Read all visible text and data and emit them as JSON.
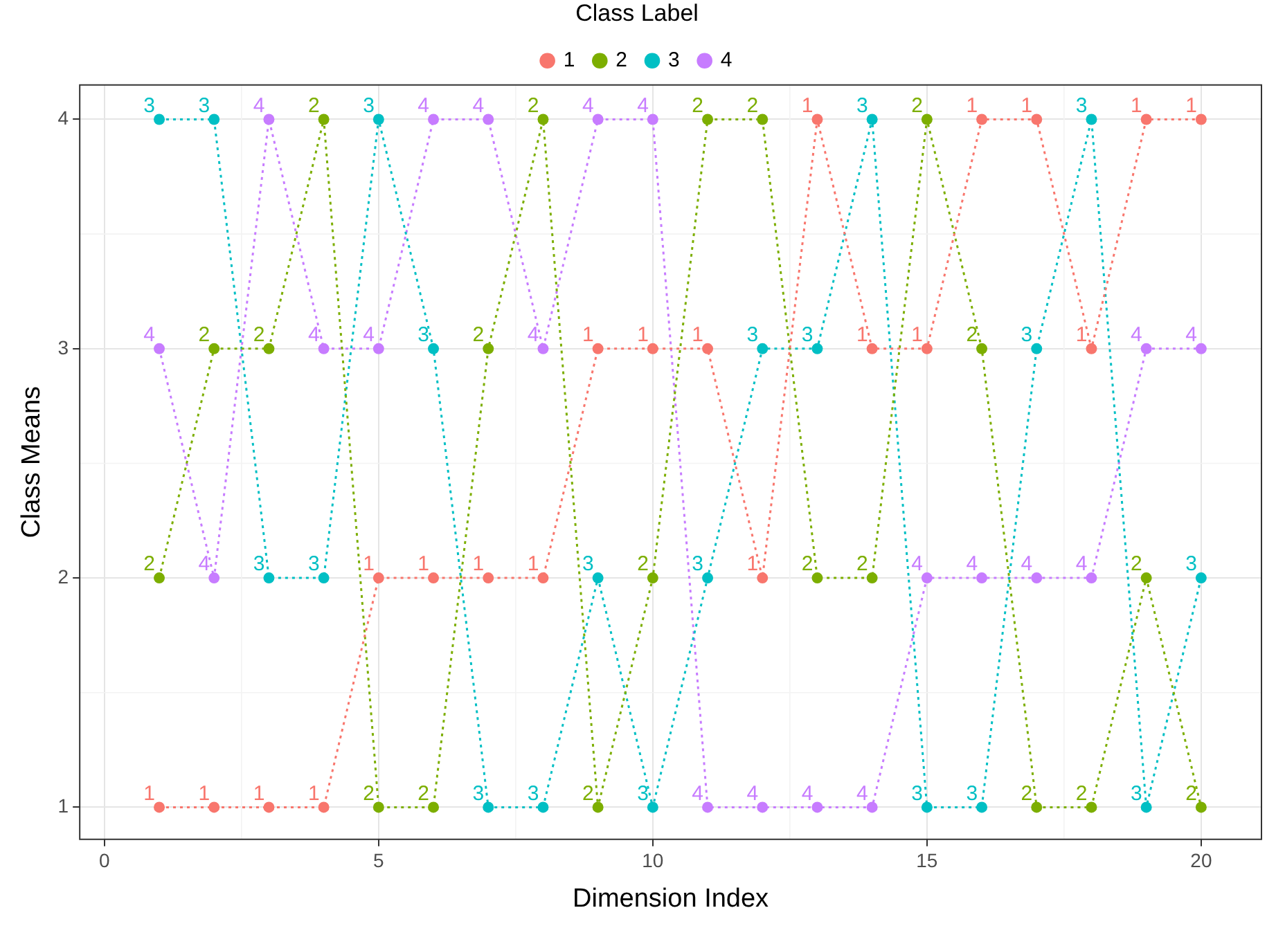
{
  "chart_data": {
    "type": "line",
    "xlabel": "Dimension Index",
    "ylabel": "Class Means",
    "legend_title": "Class Label",
    "legend": "top",
    "x": [
      1,
      2,
      3,
      4,
      5,
      6,
      7,
      8,
      9,
      10,
      11,
      12,
      13,
      14,
      15,
      16,
      17,
      18,
      19,
      20
    ],
    "series": [
      {
        "name": "1",
        "color": "#f8766d",
        "values": [
          1,
          1,
          1,
          1,
          2,
          2,
          2,
          2,
          3,
          3,
          3,
          2,
          4,
          3,
          3,
          4,
          4,
          3,
          4,
          4
        ]
      },
      {
        "name": "2",
        "color": "#7cae00",
        "values": [
          2,
          3,
          3,
          4,
          1,
          1,
          3,
          4,
          1,
          2,
          4,
          4,
          2,
          2,
          4,
          3,
          1,
          1,
          2,
          1
        ]
      },
      {
        "name": "3",
        "color": "#00bfc4",
        "values": [
          4,
          4,
          2,
          2,
          4,
          3,
          1,
          1,
          2,
          1,
          2,
          3,
          3,
          4,
          1,
          1,
          3,
          4,
          1,
          2
        ]
      },
      {
        "name": "4",
        "color": "#c77cff",
        "values": [
          3,
          2,
          4,
          3,
          3,
          4,
          4,
          3,
          4,
          4,
          1,
          1,
          1,
          1,
          2,
          2,
          2,
          2,
          3,
          3
        ]
      }
    ],
    "annotations": [
      {
        "text": "1",
        "x": 1,
        "y": 1
      },
      {
        "text": "1",
        "x": 2,
        "y": 1
      },
      {
        "text": "1",
        "x": 3,
        "y": 1
      },
      {
        "text": "1",
        "x": 4,
        "y": 1
      },
      {
        "text": "1",
        "x": 5,
        "y": 2
      },
      {
        "text": "1",
        "x": 6,
        "y": 2
      },
      {
        "text": "1",
        "x": 7,
        "y": 2
      },
      {
        "text": "1",
        "x": 8,
        "y": 2
      },
      {
        "text": "1",
        "x": 9,
        "y": 3
      },
      {
        "text": "1",
        "x": 10,
        "y": 3
      },
      {
        "text": "1",
        "x": 11,
        "y": 3
      },
      {
        "text": "1",
        "x": 12,
        "y": 2
      },
      {
        "text": "1",
        "x": 13,
        "y": 4
      },
      {
        "text": "1",
        "x": 14,
        "y": 3
      },
      {
        "text": "1",
        "x": 15,
        "y": 3
      },
      {
        "text": "1",
        "x": 16,
        "y": 4
      },
      {
        "text": "1",
        "x": 17,
        "y": 4
      },
      {
        "text": "1",
        "x": 18,
        "y": 3
      },
      {
        "text": "1",
        "x": 19,
        "y": 4
      },
      {
        "text": "1",
        "x": 20,
        "y": 4
      },
      {
        "text": "2",
        "x": 1,
        "y": 2
      },
      {
        "text": "2",
        "x": 2,
        "y": 3
      },
      {
        "text": "2",
        "x": 3,
        "y": 3
      },
      {
        "text": "2",
        "x": 4,
        "y": 4
      },
      {
        "text": "2",
        "x": 5,
        "y": 1
      },
      {
        "text": "2",
        "x": 6,
        "y": 1
      },
      {
        "text": "2",
        "x": 7,
        "y": 3
      },
      {
        "text": "2",
        "x": 8,
        "y": 4
      },
      {
        "text": "2",
        "x": 9,
        "y": 1
      },
      {
        "text": "2",
        "x": 10,
        "y": 2
      },
      {
        "text": "2",
        "x": 11,
        "y": 4
      },
      {
        "text": "2",
        "x": 12,
        "y": 4
      },
      {
        "text": "2",
        "x": 13,
        "y": 2
      },
      {
        "text": "2",
        "x": 14,
        "y": 2
      },
      {
        "text": "2",
        "x": 15,
        "y": 4
      },
      {
        "text": "2",
        "x": 16,
        "y": 3
      },
      {
        "text": "2",
        "x": 17,
        "y": 1
      },
      {
        "text": "2",
        "x": 18,
        "y": 1
      },
      {
        "text": "2",
        "x": 19,
        "y": 2
      },
      {
        "text": "2",
        "x": 20,
        "y": 1
      },
      {
        "text": "3",
        "x": 1,
        "y": 4
      },
      {
        "text": "3",
        "x": 2,
        "y": 4
      },
      {
        "text": "3",
        "x": 3,
        "y": 2
      },
      {
        "text": "3",
        "x": 4,
        "y": 2
      },
      {
        "text": "3",
        "x": 5,
        "y": 4
      },
      {
        "text": "3",
        "x": 6,
        "y": 3
      },
      {
        "text": "3",
        "x": 7,
        "y": 1
      },
      {
        "text": "3",
        "x": 8,
        "y": 1
      },
      {
        "text": "3",
        "x": 9,
        "y": 2
      },
      {
        "text": "3",
        "x": 10,
        "y": 1
      },
      {
        "text": "3",
        "x": 11,
        "y": 2
      },
      {
        "text": "3",
        "x": 12,
        "y": 3
      },
      {
        "text": "3",
        "x": 13,
        "y": 3
      },
      {
        "text": "3",
        "x": 14,
        "y": 4
      },
      {
        "text": "3",
        "x": 15,
        "y": 1
      },
      {
        "text": "3",
        "x": 16,
        "y": 1
      },
      {
        "text": "3",
        "x": 17,
        "y": 3
      },
      {
        "text": "3",
        "x": 18,
        "y": 4
      },
      {
        "text": "3",
        "x": 19,
        "y": 1
      },
      {
        "text": "3",
        "x": 20,
        "y": 2
      },
      {
        "text": "4",
        "x": 1,
        "y": 3
      },
      {
        "text": "4",
        "x": 2,
        "y": 2
      },
      {
        "text": "4",
        "x": 3,
        "y": 4
      },
      {
        "text": "4",
        "x": 4,
        "y": 3
      },
      {
        "text": "4",
        "x": 5,
        "y": 3
      },
      {
        "text": "4",
        "x": 6,
        "y": 4
      },
      {
        "text": "4",
        "x": 7,
        "y": 4
      },
      {
        "text": "4",
        "x": 8,
        "y": 3
      },
      {
        "text": "4",
        "x": 9,
        "y": 4
      },
      {
        "text": "4",
        "x": 10,
        "y": 4
      },
      {
        "text": "4",
        "x": 11,
        "y": 1
      },
      {
        "text": "4",
        "x": 12,
        "y": 1
      },
      {
        "text": "4",
        "x": 13,
        "y": 1
      },
      {
        "text": "4",
        "x": 14,
        "y": 1
      },
      {
        "text": "4",
        "x": 15,
        "y": 2
      },
      {
        "text": "4",
        "x": 16,
        "y": 2
      },
      {
        "text": "4",
        "x": 17,
        "y": 2
      },
      {
        "text": "4",
        "x": 18,
        "y": 2
      },
      {
        "text": "4",
        "x": 19,
        "y": 3
      },
      {
        "text": "4",
        "x": 20,
        "y": 3
      }
    ],
    "xlim": [
      -0.45,
      21.1
    ],
    "xticks": [
      0,
      5,
      10,
      15,
      20
    ],
    "ylim": [
      0.86,
      4.15
    ],
    "yticks": [
      1,
      2,
      3,
      4
    ],
    "grid": true,
    "marker": "circle",
    "line_style": "dotted"
  }
}
